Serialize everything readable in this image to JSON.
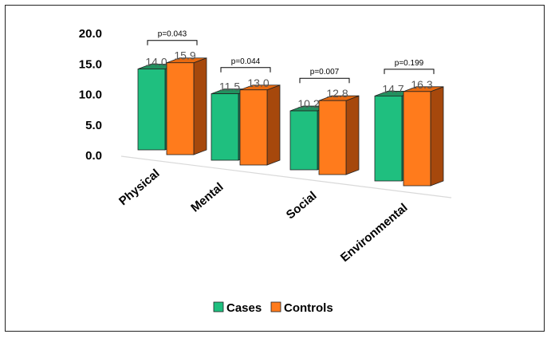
{
  "chart_data": {
    "type": "bar",
    "categories": [
      "Physical",
      "Mental",
      "Social",
      "Environmental"
    ],
    "series": [
      {
        "name": "Cases",
        "values": [
          14.0,
          11.5,
          10.2,
          14.7
        ],
        "labels": [
          "14.0",
          "11.5",
          "10.2",
          "14.7"
        ]
      },
      {
        "name": "Controls",
        "values": [
          15.9,
          13.0,
          12.8,
          16.3
        ],
        "labels": [
          "15.9",
          "13.0",
          "12.8",
          "16.3"
        ]
      }
    ],
    "p_values": [
      "p=0.043",
      "p=0.044",
      "p=0.007",
      "p=0.199"
    ],
    "yticks": [
      "0.0",
      "5.0",
      "10.0",
      "15.0",
      "20.0"
    ],
    "ylim": [
      0,
      20
    ],
    "title": "",
    "xlabel": "",
    "ylabel": "",
    "legend": "bottom",
    "grid": false
  },
  "colors": {
    "cases_front": "#1fbf7f",
    "cases_side": "#14805a",
    "cases_top": "#22915f",
    "controls_front": "#ff7b1c",
    "controls_side": "#a6480c",
    "controls_top": "#e86a10"
  }
}
